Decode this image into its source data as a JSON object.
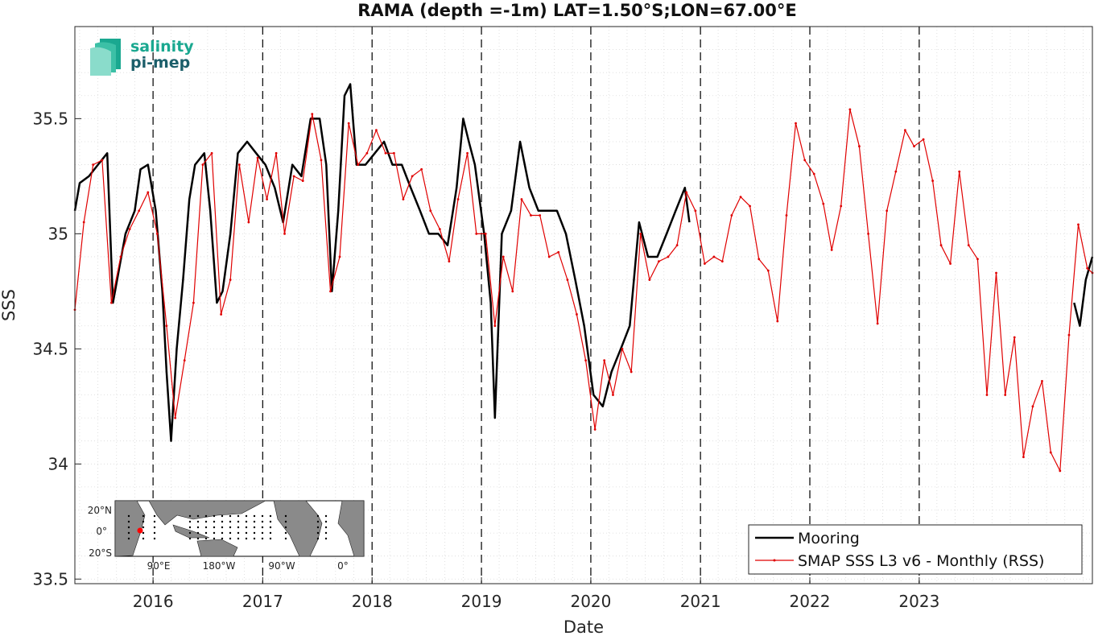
{
  "chart_data": {
    "type": "line",
    "title": "RAMA (depth =-1m) LAT=1.50°S;LON=67.00°E",
    "xlabel": "Date",
    "ylabel": "SSS",
    "x_ticks": [
      "2016",
      "2017",
      "2018",
      "2019",
      "2020",
      "2021",
      "2022",
      "2023"
    ],
    "y_ticks": [
      "33.5",
      "34",
      "34.5",
      "35",
      "35.5"
    ],
    "xlim": [
      "2015-04-15",
      "2024-08-01"
    ],
    "ylim": [
      33.48,
      35.9
    ],
    "grid": true,
    "vertical_dashed_lines": [
      "2016-01-01",
      "2017-01-01",
      "2018-01-01",
      "2019-01-01",
      "2020-01-01",
      "2021-01-01",
      "2022-01-01",
      "2023-01-01"
    ],
    "legend_position": "bottom-right",
    "series": [
      {
        "name": "Mooring",
        "color": "#000000",
        "points": [
          [
            "2015-04-15",
            35.1
          ],
          [
            "2015-05-01",
            35.22
          ],
          [
            "2015-06-01",
            35.25
          ],
          [
            "2015-07-01",
            35.3
          ],
          [
            "2015-08-01",
            35.35
          ],
          [
            "2015-08-20",
            34.7
          ],
          [
            "2015-09-10",
            34.85
          ],
          [
            "2015-10-01",
            35.0
          ],
          [
            "2015-11-01",
            35.1
          ],
          [
            "2015-11-20",
            35.28
          ],
          [
            "2015-12-15",
            35.3
          ],
          [
            "2016-01-10",
            35.1
          ],
          [
            "2016-02-01",
            34.75
          ],
          [
            "2016-02-15",
            34.4
          ],
          [
            "2016-03-01",
            34.1
          ],
          [
            "2016-03-20",
            34.5
          ],
          [
            "2016-04-10",
            34.8
          ],
          [
            "2016-05-01",
            35.15
          ],
          [
            "2016-05-20",
            35.3
          ],
          [
            "2016-06-20",
            35.35
          ],
          [
            "2016-07-10",
            35.1
          ],
          [
            "2016-08-01",
            34.7
          ],
          [
            "2016-08-20",
            34.75
          ],
          [
            "2016-09-15",
            35.0
          ],
          [
            "2016-10-10",
            35.35
          ],
          [
            "2016-11-10",
            35.4
          ],
          [
            "2016-12-10",
            35.35
          ],
          [
            "2017-01-10",
            35.3
          ],
          [
            "2017-02-10",
            35.2
          ],
          [
            "2017-03-10",
            35.05
          ],
          [
            "2017-04-10",
            35.3
          ],
          [
            "2017-05-10",
            35.25
          ],
          [
            "2017-06-10",
            35.5
          ],
          [
            "2017-07-10",
            35.5
          ],
          [
            "2017-08-01",
            35.3
          ],
          [
            "2017-08-20",
            34.75
          ],
          [
            "2017-09-10",
            35.1
          ],
          [
            "2017-10-01",
            35.6
          ],
          [
            "2017-10-20",
            35.65
          ],
          [
            "2017-11-10",
            35.3
          ],
          [
            "2017-12-10",
            35.3
          ],
          [
            "2018-01-10",
            35.35
          ],
          [
            "2018-02-10",
            35.4
          ],
          [
            "2018-03-10",
            35.3
          ],
          [
            "2018-04-10",
            35.3
          ],
          [
            "2018-05-10",
            35.2
          ],
          [
            "2018-06-10",
            35.1
          ],
          [
            "2018-07-10",
            35.0
          ],
          [
            "2018-08-10",
            35.0
          ],
          [
            "2018-09-10",
            34.95
          ],
          [
            "2018-10-10",
            35.2
          ],
          [
            "2018-11-01",
            35.5
          ],
          [
            "2018-11-20",
            35.4
          ],
          [
            "2018-12-10",
            35.3
          ],
          [
            "2019-01-10",
            35.0
          ],
          [
            "2019-02-01",
            34.7
          ],
          [
            "2019-02-15",
            34.2
          ],
          [
            "2019-03-10",
            35.0
          ],
          [
            "2019-04-10",
            35.1
          ],
          [
            "2019-05-10",
            35.4
          ],
          [
            "2019-06-10",
            35.2
          ],
          [
            "2019-07-10",
            35.1
          ],
          [
            "2019-08-10",
            35.1
          ],
          [
            "2019-09-10",
            35.1
          ],
          [
            "2019-10-10",
            35.0
          ],
          [
            "2019-11-10",
            34.8
          ],
          [
            "2019-12-10",
            34.6
          ],
          [
            "2020-01-10",
            34.3
          ],
          [
            "2020-02-10",
            34.25
          ],
          [
            "2020-03-10",
            34.4
          ],
          [
            "2020-04-10",
            34.5
          ],
          [
            "2020-05-10",
            34.6
          ],
          [
            "2020-06-10",
            35.05
          ],
          [
            "2020-07-10",
            34.9
          ],
          [
            "2020-08-10",
            34.9
          ],
          [
            "2020-09-10",
            35.0
          ],
          [
            "2020-10-10",
            35.1
          ],
          [
            "2020-11-10",
            35.2
          ],
          [
            "2020-11-25",
            35.05
          ],
          [
            "2024-06-01",
            34.7
          ],
          [
            "2024-06-20",
            34.6
          ],
          [
            "2024-07-10",
            34.8
          ],
          [
            "2024-08-01",
            34.9
          ]
        ]
      },
      {
        "name": "SMAP SSS L3 v6 - Monthly (RSS)",
        "color": "#e00000",
        "points": [
          [
            "2015-04-15",
            34.67
          ],
          [
            "2015-05-15",
            35.05
          ],
          [
            "2015-06-15",
            35.3
          ],
          [
            "2015-07-15",
            35.32
          ],
          [
            "2015-08-15",
            34.7
          ],
          [
            "2015-09-15",
            34.9
          ],
          [
            "2015-10-15",
            35.02
          ],
          [
            "2015-11-15",
            35.1
          ],
          [
            "2015-12-15",
            35.18
          ],
          [
            "2016-01-15",
            35.0
          ],
          [
            "2016-02-15",
            34.6
          ],
          [
            "2016-03-15",
            34.2
          ],
          [
            "2016-04-15",
            34.45
          ],
          [
            "2016-05-15",
            34.7
          ],
          [
            "2016-06-15",
            35.3
          ],
          [
            "2016-07-15",
            35.35
          ],
          [
            "2016-08-15",
            34.65
          ],
          [
            "2016-09-15",
            34.8
          ],
          [
            "2016-10-15",
            35.3
          ],
          [
            "2016-11-15",
            35.05
          ],
          [
            "2016-12-15",
            35.33
          ],
          [
            "2017-01-15",
            35.15
          ],
          [
            "2017-02-15",
            35.35
          ],
          [
            "2017-03-15",
            35.0
          ],
          [
            "2017-04-15",
            35.25
          ],
          [
            "2017-05-15",
            35.23
          ],
          [
            "2017-06-15",
            35.52
          ],
          [
            "2017-07-15",
            35.32
          ],
          [
            "2017-08-15",
            34.75
          ],
          [
            "2017-09-15",
            34.9
          ],
          [
            "2017-10-15",
            35.48
          ],
          [
            "2017-11-15",
            35.3
          ],
          [
            "2017-12-15",
            35.35
          ],
          [
            "2018-01-15",
            35.45
          ],
          [
            "2018-02-15",
            35.35
          ],
          [
            "2018-03-15",
            35.35
          ],
          [
            "2018-04-15",
            35.15
          ],
          [
            "2018-05-15",
            35.25
          ],
          [
            "2018-06-15",
            35.28
          ],
          [
            "2018-07-15",
            35.1
          ],
          [
            "2018-08-15",
            35.02
          ],
          [
            "2018-09-15",
            34.88
          ],
          [
            "2018-10-15",
            35.15
          ],
          [
            "2018-11-15",
            35.35
          ],
          [
            "2018-12-15",
            35.0
          ],
          [
            "2019-01-15",
            35.0
          ],
          [
            "2019-02-15",
            34.6
          ],
          [
            "2019-03-15",
            34.9
          ],
          [
            "2019-04-15",
            34.75
          ],
          [
            "2019-05-15",
            35.15
          ],
          [
            "2019-06-15",
            35.08
          ],
          [
            "2019-07-15",
            35.08
          ],
          [
            "2019-08-15",
            34.9
          ],
          [
            "2019-09-15",
            34.92
          ],
          [
            "2019-10-15",
            34.8
          ],
          [
            "2019-11-15",
            34.65
          ],
          [
            "2019-12-15",
            34.45
          ],
          [
            "2020-01-15",
            34.15
          ],
          [
            "2020-02-15",
            34.45
          ],
          [
            "2020-03-15",
            34.3
          ],
          [
            "2020-04-15",
            34.5
          ],
          [
            "2020-05-15",
            34.4
          ],
          [
            "2020-06-15",
            35.0
          ],
          [
            "2020-07-15",
            34.8
          ],
          [
            "2020-08-15",
            34.88
          ],
          [
            "2020-09-15",
            34.9
          ],
          [
            "2020-10-15",
            34.95
          ],
          [
            "2020-11-15",
            35.18
          ],
          [
            "2020-12-15",
            35.1
          ],
          [
            "2021-01-15",
            34.87
          ],
          [
            "2021-02-15",
            34.9
          ],
          [
            "2021-03-15",
            34.88
          ],
          [
            "2021-04-15",
            35.08
          ],
          [
            "2021-05-15",
            35.16
          ],
          [
            "2021-06-15",
            35.12
          ],
          [
            "2021-07-15",
            34.89
          ],
          [
            "2021-08-15",
            34.84
          ],
          [
            "2021-09-15",
            34.62
          ],
          [
            "2021-10-15",
            35.08
          ],
          [
            "2021-11-15",
            35.48
          ],
          [
            "2021-12-15",
            35.32
          ],
          [
            "2022-01-15",
            35.26
          ],
          [
            "2022-02-15",
            35.13
          ],
          [
            "2022-03-15",
            34.93
          ],
          [
            "2022-04-15",
            35.12
          ],
          [
            "2022-05-15",
            35.54
          ],
          [
            "2022-06-15",
            35.38
          ],
          [
            "2022-07-15",
            35.0
          ],
          [
            "2022-08-15",
            34.61
          ],
          [
            "2022-09-15",
            35.1
          ],
          [
            "2022-10-15",
            35.27
          ],
          [
            "2022-11-15",
            35.45
          ],
          [
            "2022-12-15",
            35.38
          ],
          [
            "2023-01-15",
            35.41
          ],
          [
            "2023-02-15",
            35.23
          ],
          [
            "2023-03-15",
            34.95
          ],
          [
            "2023-04-15",
            34.87
          ],
          [
            "2023-05-15",
            35.27
          ],
          [
            "2023-06-15",
            34.95
          ],
          [
            "2023-07-15",
            34.89
          ],
          [
            "2023-08-15",
            34.3
          ],
          [
            "2023-09-15",
            34.83
          ],
          [
            "2023-10-15",
            34.3
          ],
          [
            "2023-11-15",
            34.55
          ],
          [
            "2023-12-15",
            34.03
          ],
          [
            "2024-01-15",
            34.25
          ],
          [
            "2024-02-15",
            34.36
          ],
          [
            "2024-03-15",
            34.05
          ],
          [
            "2024-04-15",
            33.97
          ],
          [
            "2024-05-15",
            34.56
          ],
          [
            "2024-06-15",
            35.04
          ],
          [
            "2024-07-15",
            34.85
          ],
          [
            "2024-08-01",
            34.83
          ]
        ]
      }
    ]
  },
  "logo": {
    "line1": "salinity",
    "line2": "pi-mep"
  },
  "inset_map": {
    "lat_labels": [
      "20°N",
      "0°",
      "20°S"
    ],
    "lon_labels": [
      "90°E",
      "180°W",
      "90°W",
      "0°"
    ],
    "marker_color": "#ff0000"
  }
}
